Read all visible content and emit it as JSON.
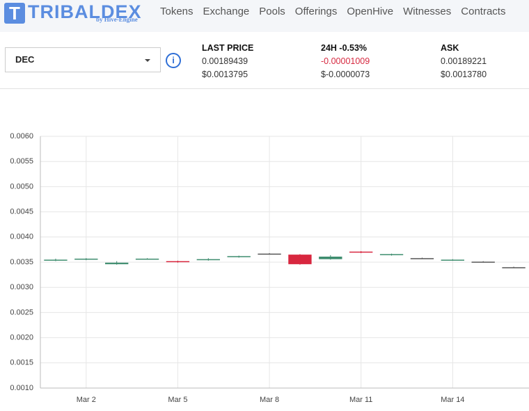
{
  "header": {
    "logo_letter": "T",
    "logo": "TRIBALDEX",
    "logo_sub": "by Hive-Engine",
    "nav": [
      "Tokens",
      "Exchange",
      "Pools",
      "Offerings",
      "OpenHive",
      "Witnesses",
      "Contracts"
    ]
  },
  "ticker": {
    "token": "DEC",
    "info": "i",
    "last_price": {
      "label": "LAST PRICE",
      "value": "0.00189439",
      "usd": "$0.0013795"
    },
    "change": {
      "label": "24H",
      "pct": "-0.53%",
      "value": "-0.00001009",
      "usd": "$-0.0000073"
    },
    "ask": {
      "label": "ASK",
      "value": "0.00189221",
      "usd": "$0.0013780"
    }
  },
  "chart_data": {
    "type": "candlestick",
    "categories": [
      null,
      "Mar 2",
      null,
      null,
      "Mar 5",
      null,
      null,
      "Mar 8",
      null,
      null,
      "Mar 11",
      null,
      null,
      "Mar 14",
      null,
      null
    ],
    "open": [
      0.00354,
      0.00356,
      0.00346,
      0.00356,
      0.00352,
      0.00354,
      0.0036,
      0.00367,
      0.00365,
      0.00356,
      0.00371,
      0.00364,
      0.00358,
      0.00354,
      0.00351,
      0.0034
    ],
    "close": [
      0.00355,
      0.00357,
      0.00349,
      0.00357,
      0.0035,
      0.00356,
      0.00362,
      0.00367,
      0.00346,
      0.00361,
      0.00369,
      0.00366,
      0.00358,
      0.00355,
      0.00351,
      0.0034
    ],
    "high": [
      0.00357,
      0.00358,
      0.00352,
      0.00358,
      0.00353,
      0.00358,
      0.00363,
      0.00368,
      0.00366,
      0.00364,
      0.00372,
      0.00367,
      0.00359,
      0.00356,
      0.00352,
      0.00341
    ],
    "low": [
      0.00352,
      0.00354,
      0.00345,
      0.00355,
      0.00349,
      0.00353,
      0.00359,
      0.00366,
      0.00345,
      0.00355,
      0.00368,
      0.00363,
      0.00357,
      0.00353,
      0.0035,
      0.00339
    ],
    "up_color": "#3d8c6e",
    "down_color": "#d8273f",
    "doji_color": "#555555",
    "ylim": [
      0.001,
      0.006
    ],
    "yticks": [
      {
        "value": 0.001,
        "label": "0.0010"
      },
      {
        "value": 0.0015,
        "label": "0.0015"
      },
      {
        "value": 0.002,
        "label": "0.0020"
      },
      {
        "value": 0.0025,
        "label": "0.0025"
      },
      {
        "value": 0.003,
        "label": "0.0030"
      },
      {
        "value": 0.0035,
        "label": "0.0035"
      },
      {
        "value": 0.004,
        "label": "0.0040"
      },
      {
        "value": 0.0045,
        "label": "0.0045"
      },
      {
        "value": 0.005,
        "label": "0.0050"
      },
      {
        "value": 0.0055,
        "label": "0.0055"
      },
      {
        "value": 0.006,
        "label": "0.0060"
      }
    ],
    "grid": true
  }
}
